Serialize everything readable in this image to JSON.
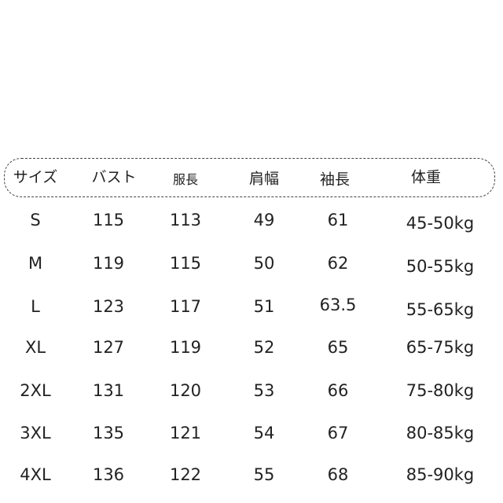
{
  "headers": [
    "サイズ",
    "バスト",
    "服長",
    "肩幅",
    "袖長",
    "体重"
  ],
  "rows": [
    [
      "S",
      "115",
      "113",
      "49",
      "61",
      "45-50kg"
    ],
    [
      "M",
      "119",
      "115",
      "50",
      "62",
      "50-55kg"
    ],
    [
      "L",
      "123",
      "117",
      "51",
      "63.5",
      "55-65kg"
    ],
    [
      "XL",
      "127",
      "119",
      "52",
      "65",
      "65-75kg"
    ],
    [
      "2XL",
      "131",
      "120",
      "53",
      "66",
      "75-80kg"
    ],
    [
      "3XL",
      "135",
      "121",
      "54",
      "67",
      "80-85kg"
    ],
    [
      "4XL",
      "136",
      "122",
      "55",
      "68",
      "85-90kg"
    ]
  ]
}
